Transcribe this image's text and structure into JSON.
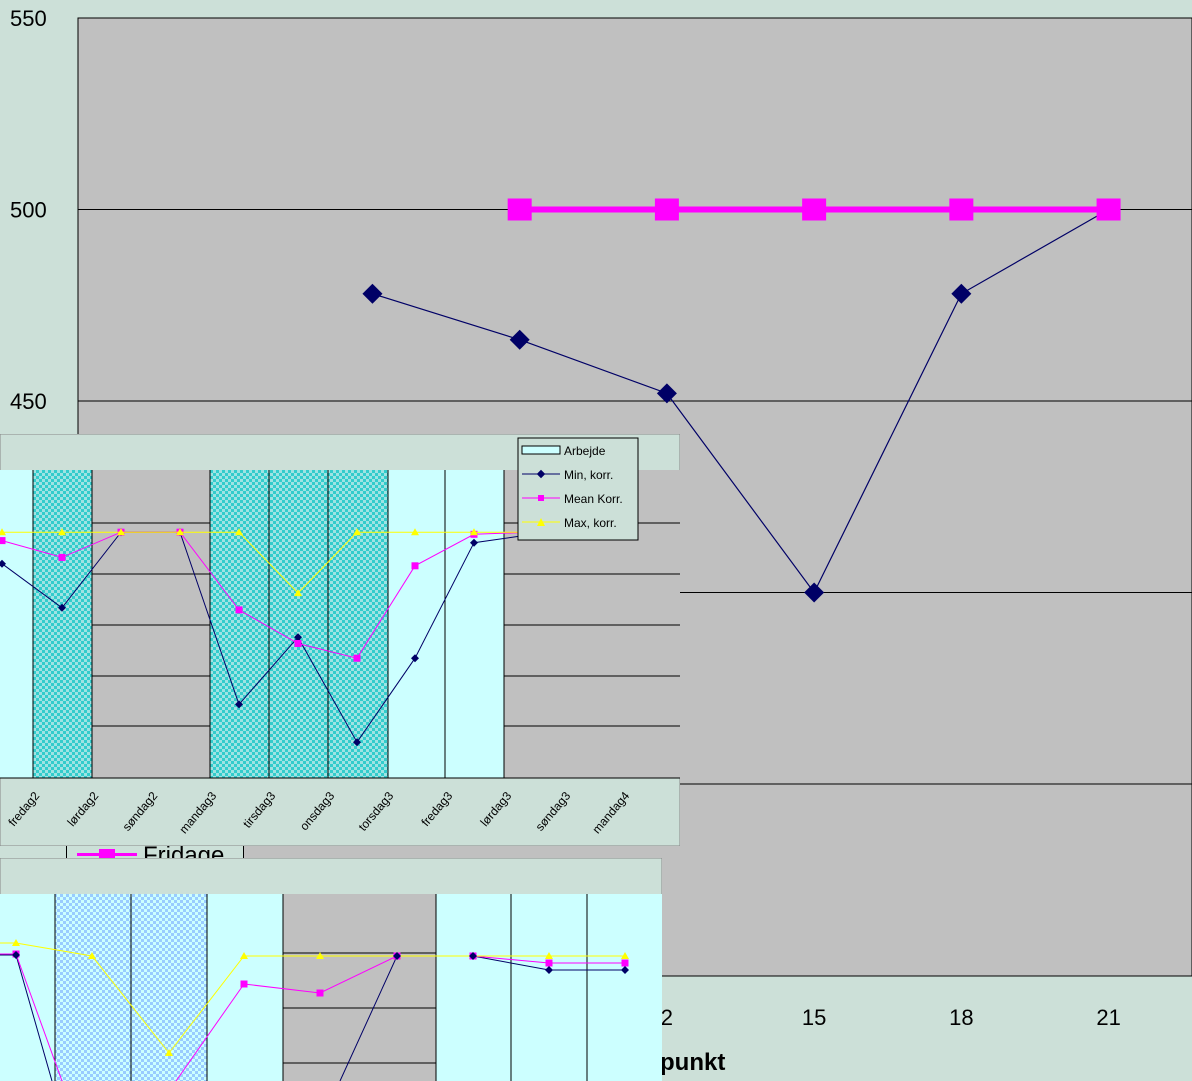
{
  "chart_data": [
    {
      "type": "line",
      "grid": true,
      "ylim": [
        400,
        550
      ],
      "y_ticks": [
        550,
        500,
        450
      ],
      "x_ticks": [
        15,
        18,
        21
      ],
      "x_partial_tick": "2",
      "xlabel_partial": "punkt",
      "legend_partial": "Fridage",
      "series": [
        {
          "marker": "diamond",
          "color": "#000066",
          "x": [
            6,
            9,
            12,
            15,
            18,
            21
          ],
          "values": [
            478,
            466,
            452,
            400,
            478,
            500
          ]
        },
        {
          "marker": "square",
          "color": "#ff00ff",
          "x": [
            9,
            12,
            15,
            18,
            21
          ],
          "values": [
            500,
            500,
            500,
            500,
            500
          ]
        }
      ]
    },
    {
      "type": "line",
      "categories": [
        "fredag2",
        "lørdag2",
        "søndag2",
        "mandag3",
        "tirsdag3",
        "onsdag3",
        "torsdag3",
        "fredag3",
        "lørdag3",
        "søndag3",
        "mandag4"
      ],
      "legend": [
        "Arbejde",
        "Min, korr.",
        "Mean Korr.",
        "Max, korr."
      ],
      "series": [
        {
          "name": "Min, korr.",
          "color": "#000066",
          "values": [
            0.17,
            0.38,
            0.02,
            0.02,
            0.84,
            0.52,
            1.02,
            0.62,
            0.07,
            0.03,
            0.01
          ]
        },
        {
          "name": "Mean Korr.",
          "color": "#ff00ff",
          "values": [
            0.06,
            0.14,
            0.02,
            0.02,
            0.39,
            0.55,
            0.62,
            0.18,
            0.03,
            0.02,
            0.01
          ]
        },
        {
          "name": "Max, korr.",
          "color": "#ffff00",
          "values": [
            0.02,
            0.02,
            0.02,
            0.02,
            0.02,
            0.31,
            0.02,
            0.02,
            0.02,
            0.02,
            0.02
          ]
        }
      ]
    },
    {
      "type": "line",
      "series": [
        {
          "color": "#000066",
          "values": [
            0.1,
            0.3,
            null,
            null,
            null,
            null,
            null,
            0.2,
            0.27,
            0.3,
            0.3
          ]
        },
        {
          "color": "#ff00ff",
          "values": [
            0.05,
            0.2,
            null,
            null,
            0.4,
            0.52,
            0.3,
            0.2,
            0.2,
            0.23,
            0.23
          ]
        },
        {
          "color": "#ffff00",
          "values": [
            0.05,
            0.1,
            0.2,
            1.3,
            0.2,
            0.2,
            0.2,
            0.2,
            0.2,
            0.2,
            0.2
          ]
        }
      ]
    }
  ]
}
